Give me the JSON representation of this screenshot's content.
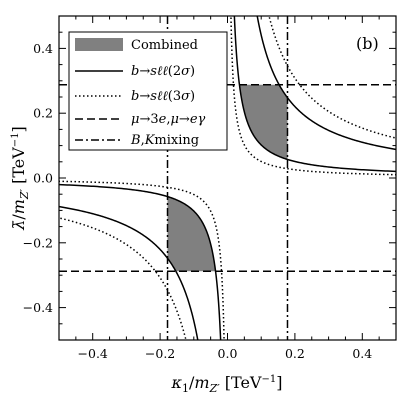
{
  "chart_data": {
    "type": "line",
    "xlabel": "κ₁/m_{Z′} [TeV⁻¹]",
    "ylabel": "λ̄/m_{Z′} [TeV⁻¹]",
    "xlim": [
      -0.5,
      0.5
    ],
    "ylim": [
      -0.5,
      0.5
    ],
    "xticks": [
      -0.4,
      -0.2,
      0.0,
      0.2,
      0.4
    ],
    "xtick_labels": [
      "−0.4",
      "−0.2",
      "0.0",
      "0.2",
      "0.4"
    ],
    "yticks": [
      -0.4,
      -0.2,
      0.0,
      0.2,
      0.4
    ],
    "ytick_labels": [
      "−0.4",
      "−0.2",
      "0.0",
      "0.2",
      "0.4"
    ],
    "panel_label": "(b)",
    "legend_position": "top-left",
    "legend": [
      {
        "label": "Combined",
        "style": "fill",
        "color": "#808080"
      },
      {
        "label": "b→sℓℓ(2σ)",
        "style": "solid"
      },
      {
        "label": "b→sℓℓ(3σ)",
        "style": "dotted"
      },
      {
        "label": "μ→3e,μ→eγ",
        "style": "dashed"
      },
      {
        "label": "B,K mixing",
        "style": "dashdot"
      }
    ],
    "hyperbolas": [
      {
        "name": "b→sℓℓ(2σ)",
        "style": "solid",
        "product": 0.0102
      },
      {
        "name": "b→sℓℓ(2σ)",
        "style": "solid",
        "product": 0.0441
      },
      {
        "name": "b→sℓℓ(3σ)",
        "style": "dotted",
        "product": 0.0051
      },
      {
        "name": "b→sℓℓ(3σ)",
        "style": "dotted",
        "product": 0.0616
      }
    ],
    "dashed_levels": [
      0.288,
      -0.288
    ],
    "dashdot_levels": [
      0.178,
      -0.178
    ],
    "combined_regions": [
      {
        "quadrant": "upper-right",
        "x_range": [
          0.178,
          0.0441
        ],
        "y_range": [
          0.0441,
          0.288
        ]
      },
      {
        "quadrant": "lower-left",
        "x_range": [
          -0.178,
          -0.0441
        ],
        "y_range": [
          -0.0441,
          -0.288
        ]
      }
    ]
  }
}
